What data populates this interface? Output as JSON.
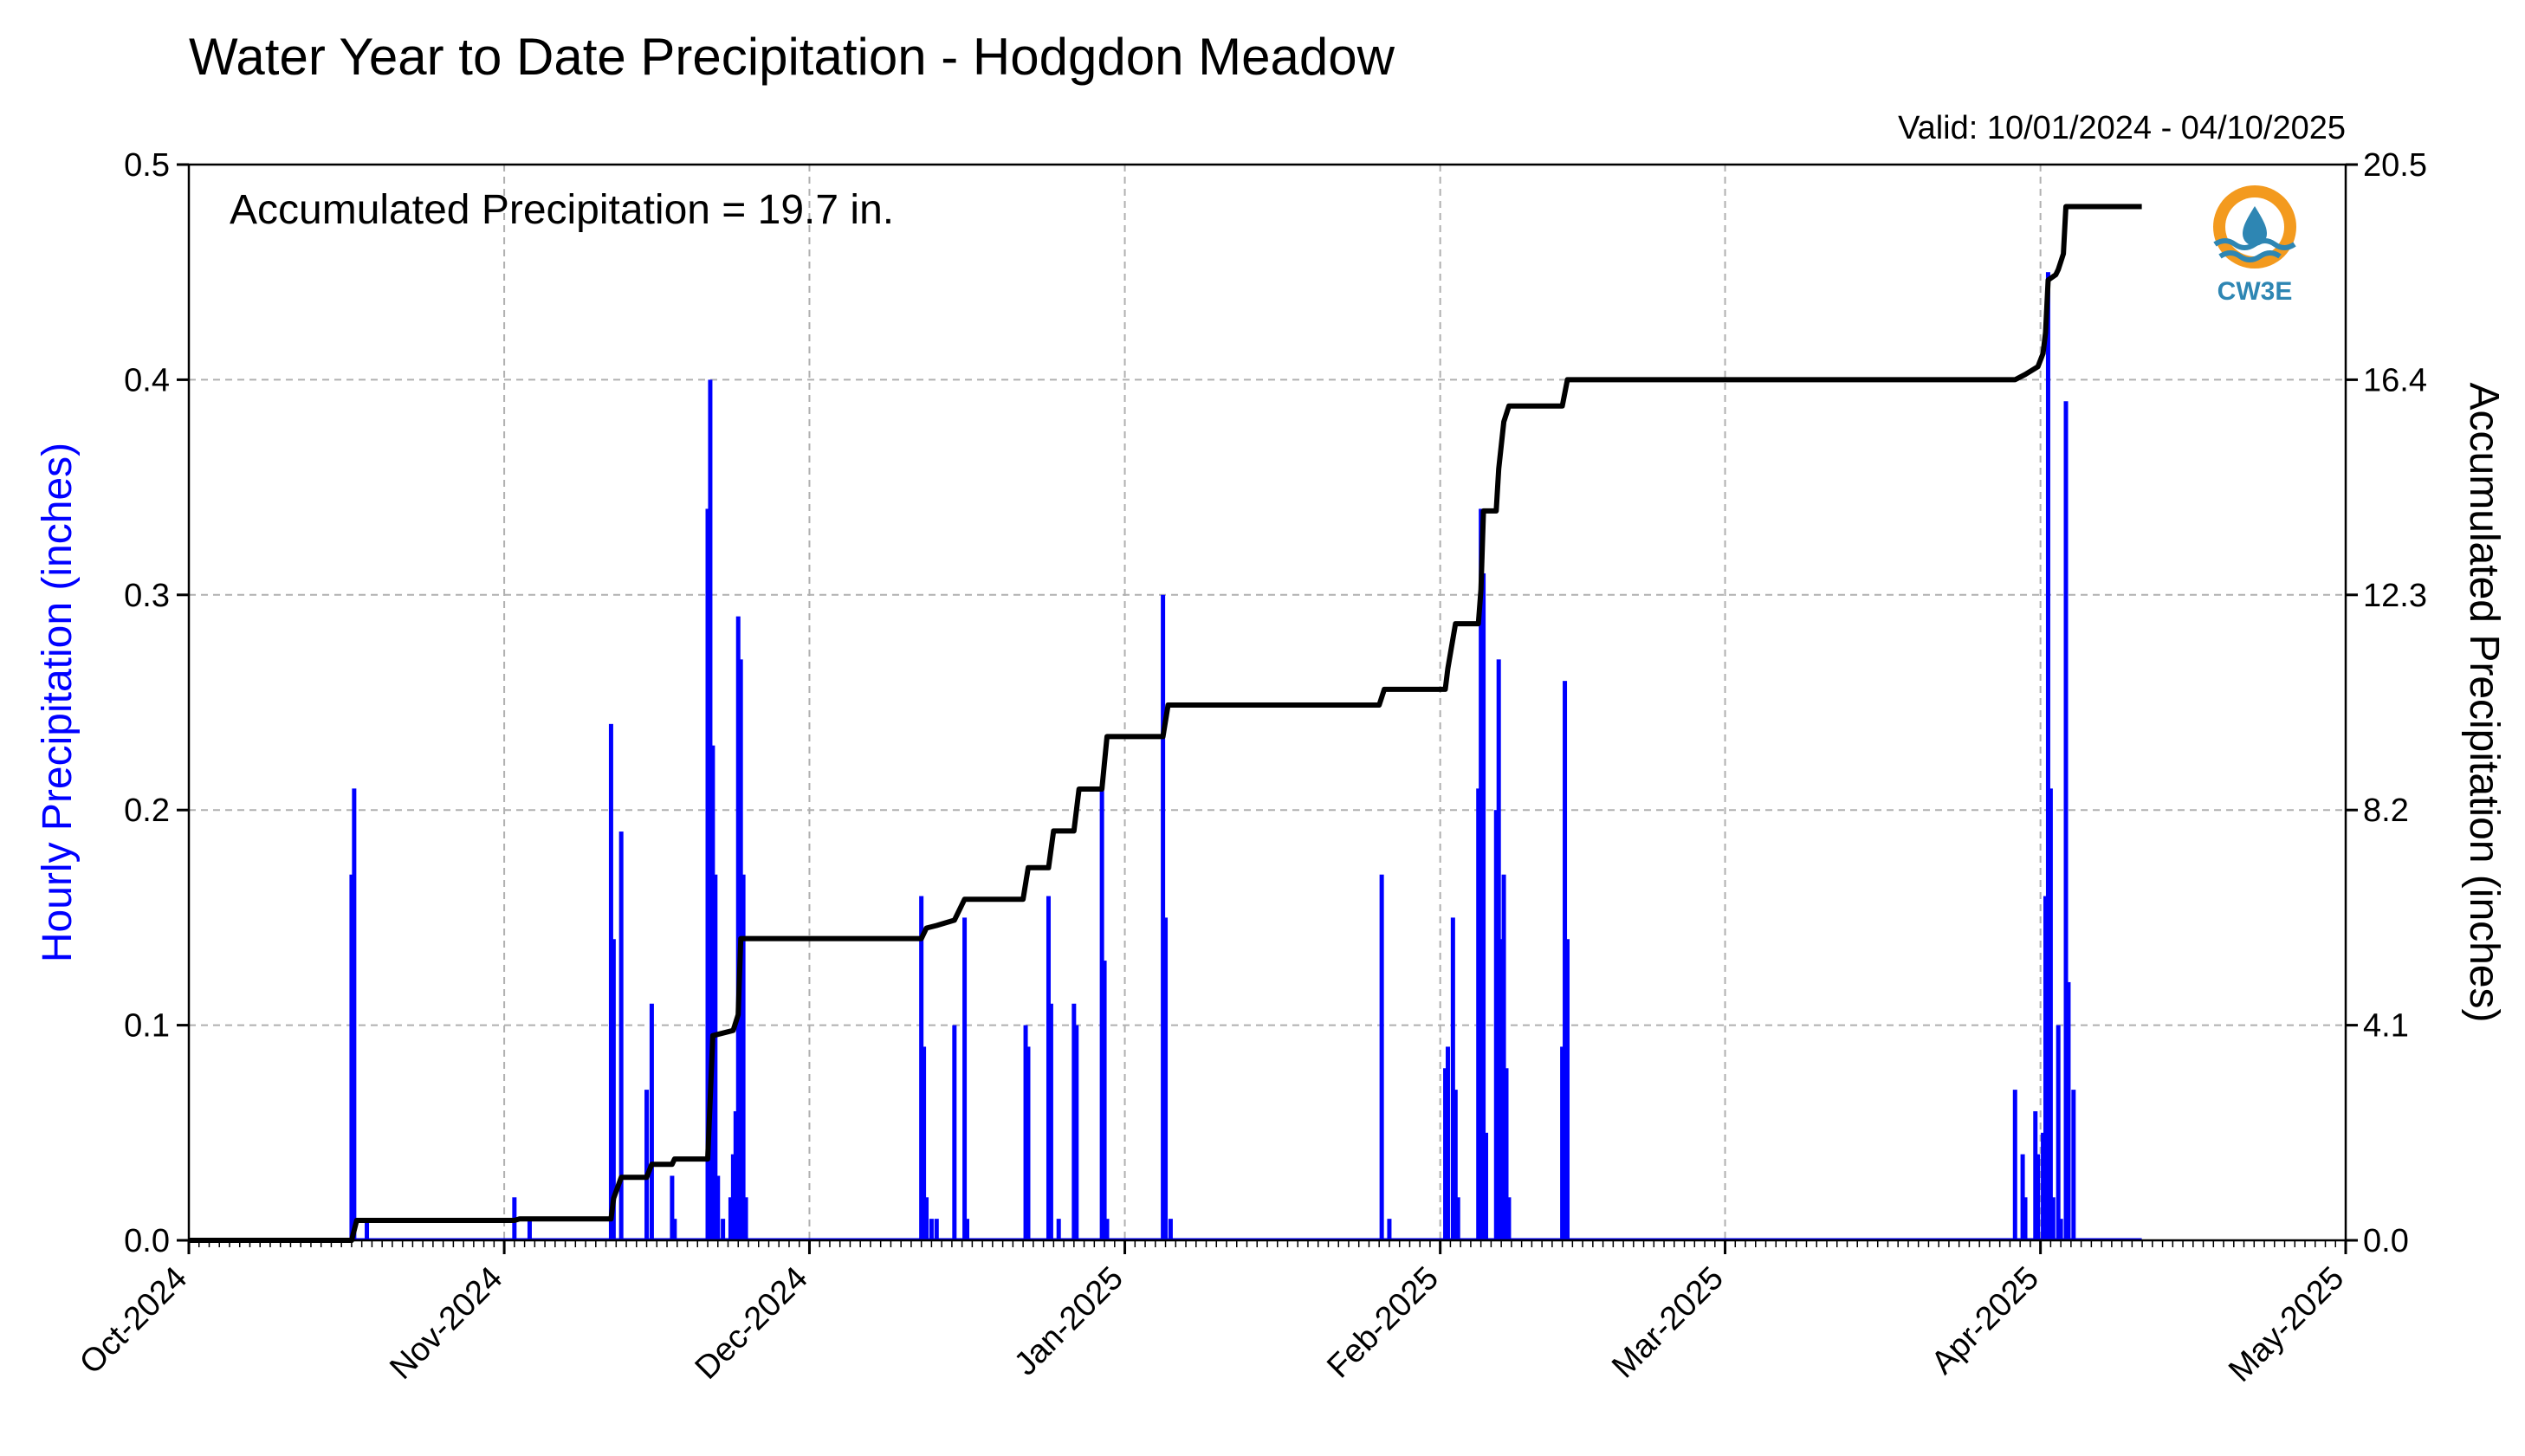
{
  "chart_data": {
    "type": "bar",
    "title": "Water Year to Date Precipitation - Hodgdon Meadow",
    "subtitle": "Valid: 10/01/2024 - 04/10/2025",
    "annotation": "Accumulated Precipitation = 19.7 in.",
    "ylabel_left": "Hourly Precipitation (inches)",
    "ylabel_right": "Accumulated Precipitation (inches)",
    "logo_text": "CW3E",
    "x_range": [
      "2024-10-01",
      "2025-05-01"
    ],
    "x_ticks": [
      {
        "date": "2024-10-01",
        "label": "Oct-2024"
      },
      {
        "date": "2024-11-01",
        "label": "Nov-2024"
      },
      {
        "date": "2024-12-01",
        "label": "Dec-2024"
      },
      {
        "date": "2025-01-01",
        "label": "Jan-2025"
      },
      {
        "date": "2025-02-01",
        "label": "Feb-2025"
      },
      {
        "date": "2025-03-01",
        "label": "Mar-2025"
      },
      {
        "date": "2025-04-01",
        "label": "Apr-2025"
      },
      {
        "date": "2025-05-01",
        "label": "May-2025"
      }
    ],
    "ylim_left": [
      0,
      0.5
    ],
    "yticks_left": [
      "0.0",
      "0.1",
      "0.2",
      "0.3",
      "0.4",
      "0.5"
    ],
    "ylim_right": [
      0,
      20.5
    ],
    "yticks_right": [
      "0.0",
      "4.1",
      "8.2",
      "12.3",
      "16.4",
      "20.5"
    ],
    "grid": true,
    "colors": {
      "hourly": "#0000ff",
      "accumulated": "#000000"
    },
    "series": [
      {
        "type": "bar",
        "axis": "left",
        "points": [
          [
            "2024-10-17 00:00",
            0.17
          ],
          [
            "2024-10-17 06:00",
            0.21
          ],
          [
            "2024-10-18 12:00",
            0.01
          ],
          [
            "2024-11-02 00:00",
            0.02
          ],
          [
            "2024-11-03 12:00",
            0.01
          ],
          [
            "2024-11-11 12:00",
            0.24
          ],
          [
            "2024-11-11 18:00",
            0.14
          ],
          [
            "2024-11-12 12:00",
            0.19
          ],
          [
            "2024-11-15 00:00",
            0.07
          ],
          [
            "2024-11-15 12:00",
            0.11
          ],
          [
            "2024-11-17 12:00",
            0.03
          ],
          [
            "2024-11-17 18:00",
            0.01
          ],
          [
            "2024-11-21 00:00",
            0.34
          ],
          [
            "2024-11-21 06:00",
            0.4
          ],
          [
            "2024-11-21 12:00",
            0.23
          ],
          [
            "2024-11-21 18:00",
            0.17
          ],
          [
            "2024-11-22 00:00",
            0.03
          ],
          [
            "2024-11-22 12:00",
            0.01
          ],
          [
            "2024-11-23 06:00",
            0.02
          ],
          [
            "2024-11-23 12:00",
            0.04
          ],
          [
            "2024-11-23 18:00",
            0.06
          ],
          [
            "2024-11-24 00:00",
            0.29
          ],
          [
            "2024-11-24 06:00",
            0.27
          ],
          [
            "2024-11-24 12:00",
            0.17
          ],
          [
            "2024-11-24 18:00",
            0.02
          ],
          [
            "2024-12-12 00:00",
            0.16
          ],
          [
            "2024-12-12 06:00",
            0.09
          ],
          [
            "2024-12-12 12:00",
            0.02
          ],
          [
            "2024-12-13 00:00",
            0.01
          ],
          [
            "2024-12-13 12:00",
            0.01
          ],
          [
            "2024-12-15 06:00",
            0.1
          ],
          [
            "2024-12-16 06:00",
            0.15
          ],
          [
            "2024-12-16 12:00",
            0.01
          ],
          [
            "2024-12-22 06:00",
            0.1
          ],
          [
            "2024-12-22 12:00",
            0.09
          ],
          [
            "2024-12-24 12:00",
            0.16
          ],
          [
            "2024-12-24 18:00",
            0.11
          ],
          [
            "2024-12-25 12:00",
            0.01
          ],
          [
            "2024-12-27 00:00",
            0.11
          ],
          [
            "2024-12-27 06:00",
            0.1
          ],
          [
            "2024-12-29 18:00",
            0.21
          ],
          [
            "2024-12-30 00:00",
            0.13
          ],
          [
            "2024-12-30 06:00",
            0.01
          ],
          [
            "2025-01-04 18:00",
            0.3
          ],
          [
            "2025-01-05 00:00",
            0.15
          ],
          [
            "2025-01-05 12:00",
            0.01
          ],
          [
            "2025-01-26 06:00",
            0.17
          ],
          [
            "2025-01-27 00:00",
            0.01
          ],
          [
            "2025-02-01 12:00",
            0.08
          ],
          [
            "2025-02-01 18:00",
            0.09
          ],
          [
            "2025-02-02 06:00",
            0.15
          ],
          [
            "2025-02-02 12:00",
            0.07
          ],
          [
            "2025-02-02 18:00",
            0.02
          ],
          [
            "2025-02-04 18:00",
            0.21
          ],
          [
            "2025-02-05 00:00",
            0.34
          ],
          [
            "2025-02-05 06:00",
            0.31
          ],
          [
            "2025-02-05 12:00",
            0.05
          ],
          [
            "2025-02-06 12:00",
            0.2
          ],
          [
            "2025-02-06 18:00",
            0.27
          ],
          [
            "2025-02-07 00:00",
            0.14
          ],
          [
            "2025-02-07 06:00",
            0.17
          ],
          [
            "2025-02-07 12:00",
            0.08
          ],
          [
            "2025-02-07 18:00",
            0.02
          ],
          [
            "2025-02-13 00:00",
            0.09
          ],
          [
            "2025-02-13 06:00",
            0.26
          ],
          [
            "2025-02-13 12:00",
            0.14
          ],
          [
            "2025-03-29 12:00",
            0.07
          ],
          [
            "2025-03-30 06:00",
            0.04
          ],
          [
            "2025-03-30 12:00",
            0.02
          ],
          [
            "2025-03-31 12:00",
            0.06
          ],
          [
            "2025-03-31 18:00",
            0.04
          ],
          [
            "2025-04-01 06:00",
            0.05
          ],
          [
            "2025-04-01 12:00",
            0.16
          ],
          [
            "2025-04-01 18:00",
            0.45
          ],
          [
            "2025-04-02 00:00",
            0.21
          ],
          [
            "2025-04-02 06:00",
            0.02
          ],
          [
            "2025-04-02 18:00",
            0.1
          ],
          [
            "2025-04-03 00:00",
            0.01
          ],
          [
            "2025-04-03 12:00",
            0.39
          ],
          [
            "2025-04-03 18:00",
            0.12
          ],
          [
            "2025-04-04 06:00",
            0.07
          ]
        ]
      },
      {
        "type": "step-line",
        "axis": "right",
        "points": [
          [
            "2024-10-01 00:00",
            0.0
          ],
          [
            "2024-10-17 00:00",
            0.0
          ],
          [
            "2024-10-17 12:00",
            0.38
          ],
          [
            "2024-11-02 00:00",
            0.38
          ],
          [
            "2024-11-02 12:00",
            0.41
          ],
          [
            "2024-11-11 12:00",
            0.41
          ],
          [
            "2024-11-11 18:00",
            0.8
          ],
          [
            "2024-11-12 12:00",
            1.2
          ],
          [
            "2024-11-15 00:00",
            1.2
          ],
          [
            "2024-11-15 12:00",
            1.45
          ],
          [
            "2024-11-17 12:00",
            1.45
          ],
          [
            "2024-11-17 18:00",
            1.55
          ],
          [
            "2024-11-21 00:00",
            1.55
          ],
          [
            "2024-11-21 06:00",
            2.7
          ],
          [
            "2024-11-21 12:00",
            3.9
          ],
          [
            "2024-11-23 12:00",
            4.0
          ],
          [
            "2024-11-24 00:00",
            4.3
          ],
          [
            "2024-11-24 06:00",
            5.75
          ],
          [
            "2024-12-12 00:00",
            5.75
          ],
          [
            "2024-12-12 12:00",
            5.95
          ],
          [
            "2024-12-13 12:00",
            6.0
          ],
          [
            "2024-12-15 06:00",
            6.1
          ],
          [
            "2024-12-16 06:00",
            6.5
          ],
          [
            "2024-12-22 00:00",
            6.5
          ],
          [
            "2024-12-22 12:00",
            7.1
          ],
          [
            "2024-12-24 12:00",
            7.1
          ],
          [
            "2024-12-25 00:00",
            7.8
          ],
          [
            "2024-12-27 00:00",
            7.8
          ],
          [
            "2024-12-27 12:00",
            8.6
          ],
          [
            "2024-12-29 18:00",
            8.6
          ],
          [
            "2024-12-30 06:00",
            9.6
          ],
          [
            "2025-01-04 18:00",
            9.6
          ],
          [
            "2025-01-05 06:00",
            10.2
          ],
          [
            "2025-01-26 00:00",
            10.2
          ],
          [
            "2025-01-26 12:00",
            10.5
          ],
          [
            "2025-02-01 12:00",
            10.5
          ],
          [
            "2025-02-01 18:00",
            10.9
          ],
          [
            "2025-02-02 12:00",
            11.75
          ],
          [
            "2025-02-04 18:00",
            11.75
          ],
          [
            "2025-02-05 00:00",
            12.4
          ],
          [
            "2025-02-05 06:00",
            13.9
          ],
          [
            "2025-02-06 12:00",
            13.9
          ],
          [
            "2025-02-06 18:00",
            14.7
          ],
          [
            "2025-02-07 06:00",
            15.6
          ],
          [
            "2025-02-07 18:00",
            15.9
          ],
          [
            "2025-02-13 00:00",
            15.9
          ],
          [
            "2025-02-13 12:00",
            16.4
          ],
          [
            "2025-03-29 12:00",
            16.4
          ],
          [
            "2025-03-30 12:00",
            16.5
          ],
          [
            "2025-03-31 18:00",
            16.65
          ],
          [
            "2025-04-01 06:00",
            16.9
          ],
          [
            "2025-04-01 12:00",
            17.3
          ],
          [
            "2025-04-01 18:00",
            18.3
          ],
          [
            "2025-04-02 12:00",
            18.4
          ],
          [
            "2025-04-02 18:00",
            18.5
          ],
          [
            "2025-04-03 06:00",
            18.8
          ],
          [
            "2025-04-03 12:00",
            19.7
          ],
          [
            "2025-04-10 23:00",
            19.7
          ]
        ]
      }
    ]
  }
}
